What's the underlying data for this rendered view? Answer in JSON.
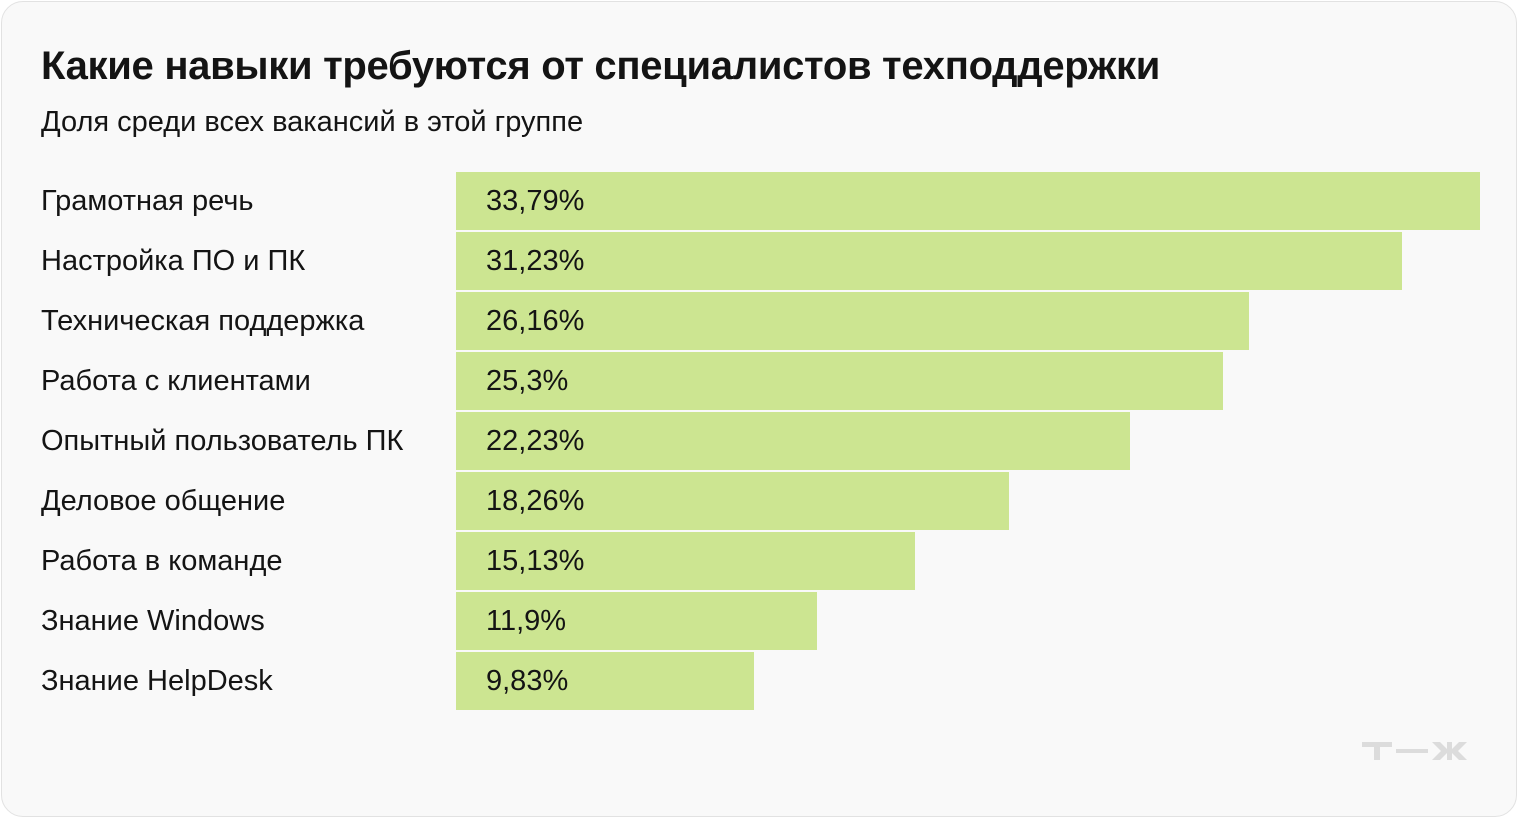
{
  "chart_data": {
    "type": "bar",
    "orientation": "horizontal",
    "title": "Какие навыки требуются от специалистов техподдержки",
    "subtitle": "Доля среди всех вакансий в этой группе",
    "categories": [
      "Грамотная речь",
      "Настройка ПО и ПК",
      "Техническая поддержка",
      "Работа с клиентами",
      "Опытный пользователь ПК",
      "Деловое общение",
      "Работа в команде",
      "Знание Windows",
      "Знание HelpDesk"
    ],
    "values": [
      33.79,
      31.23,
      26.16,
      25.3,
      22.23,
      18.26,
      15.13,
      11.9,
      9.83
    ],
    "value_labels": [
      "33,79%",
      "31,23%",
      "26,16%",
      "25,3%",
      "22,23%",
      "18,26%",
      "15,13%",
      "11,9%",
      "9,83%"
    ],
    "unit": "%",
    "xlim": [
      0,
      33.79
    ],
    "grid": false,
    "legend": "none",
    "bar_color": "#cce591"
  },
  "logo": {
    "name": "tzh-logo",
    "color": "#dcdcdc"
  }
}
